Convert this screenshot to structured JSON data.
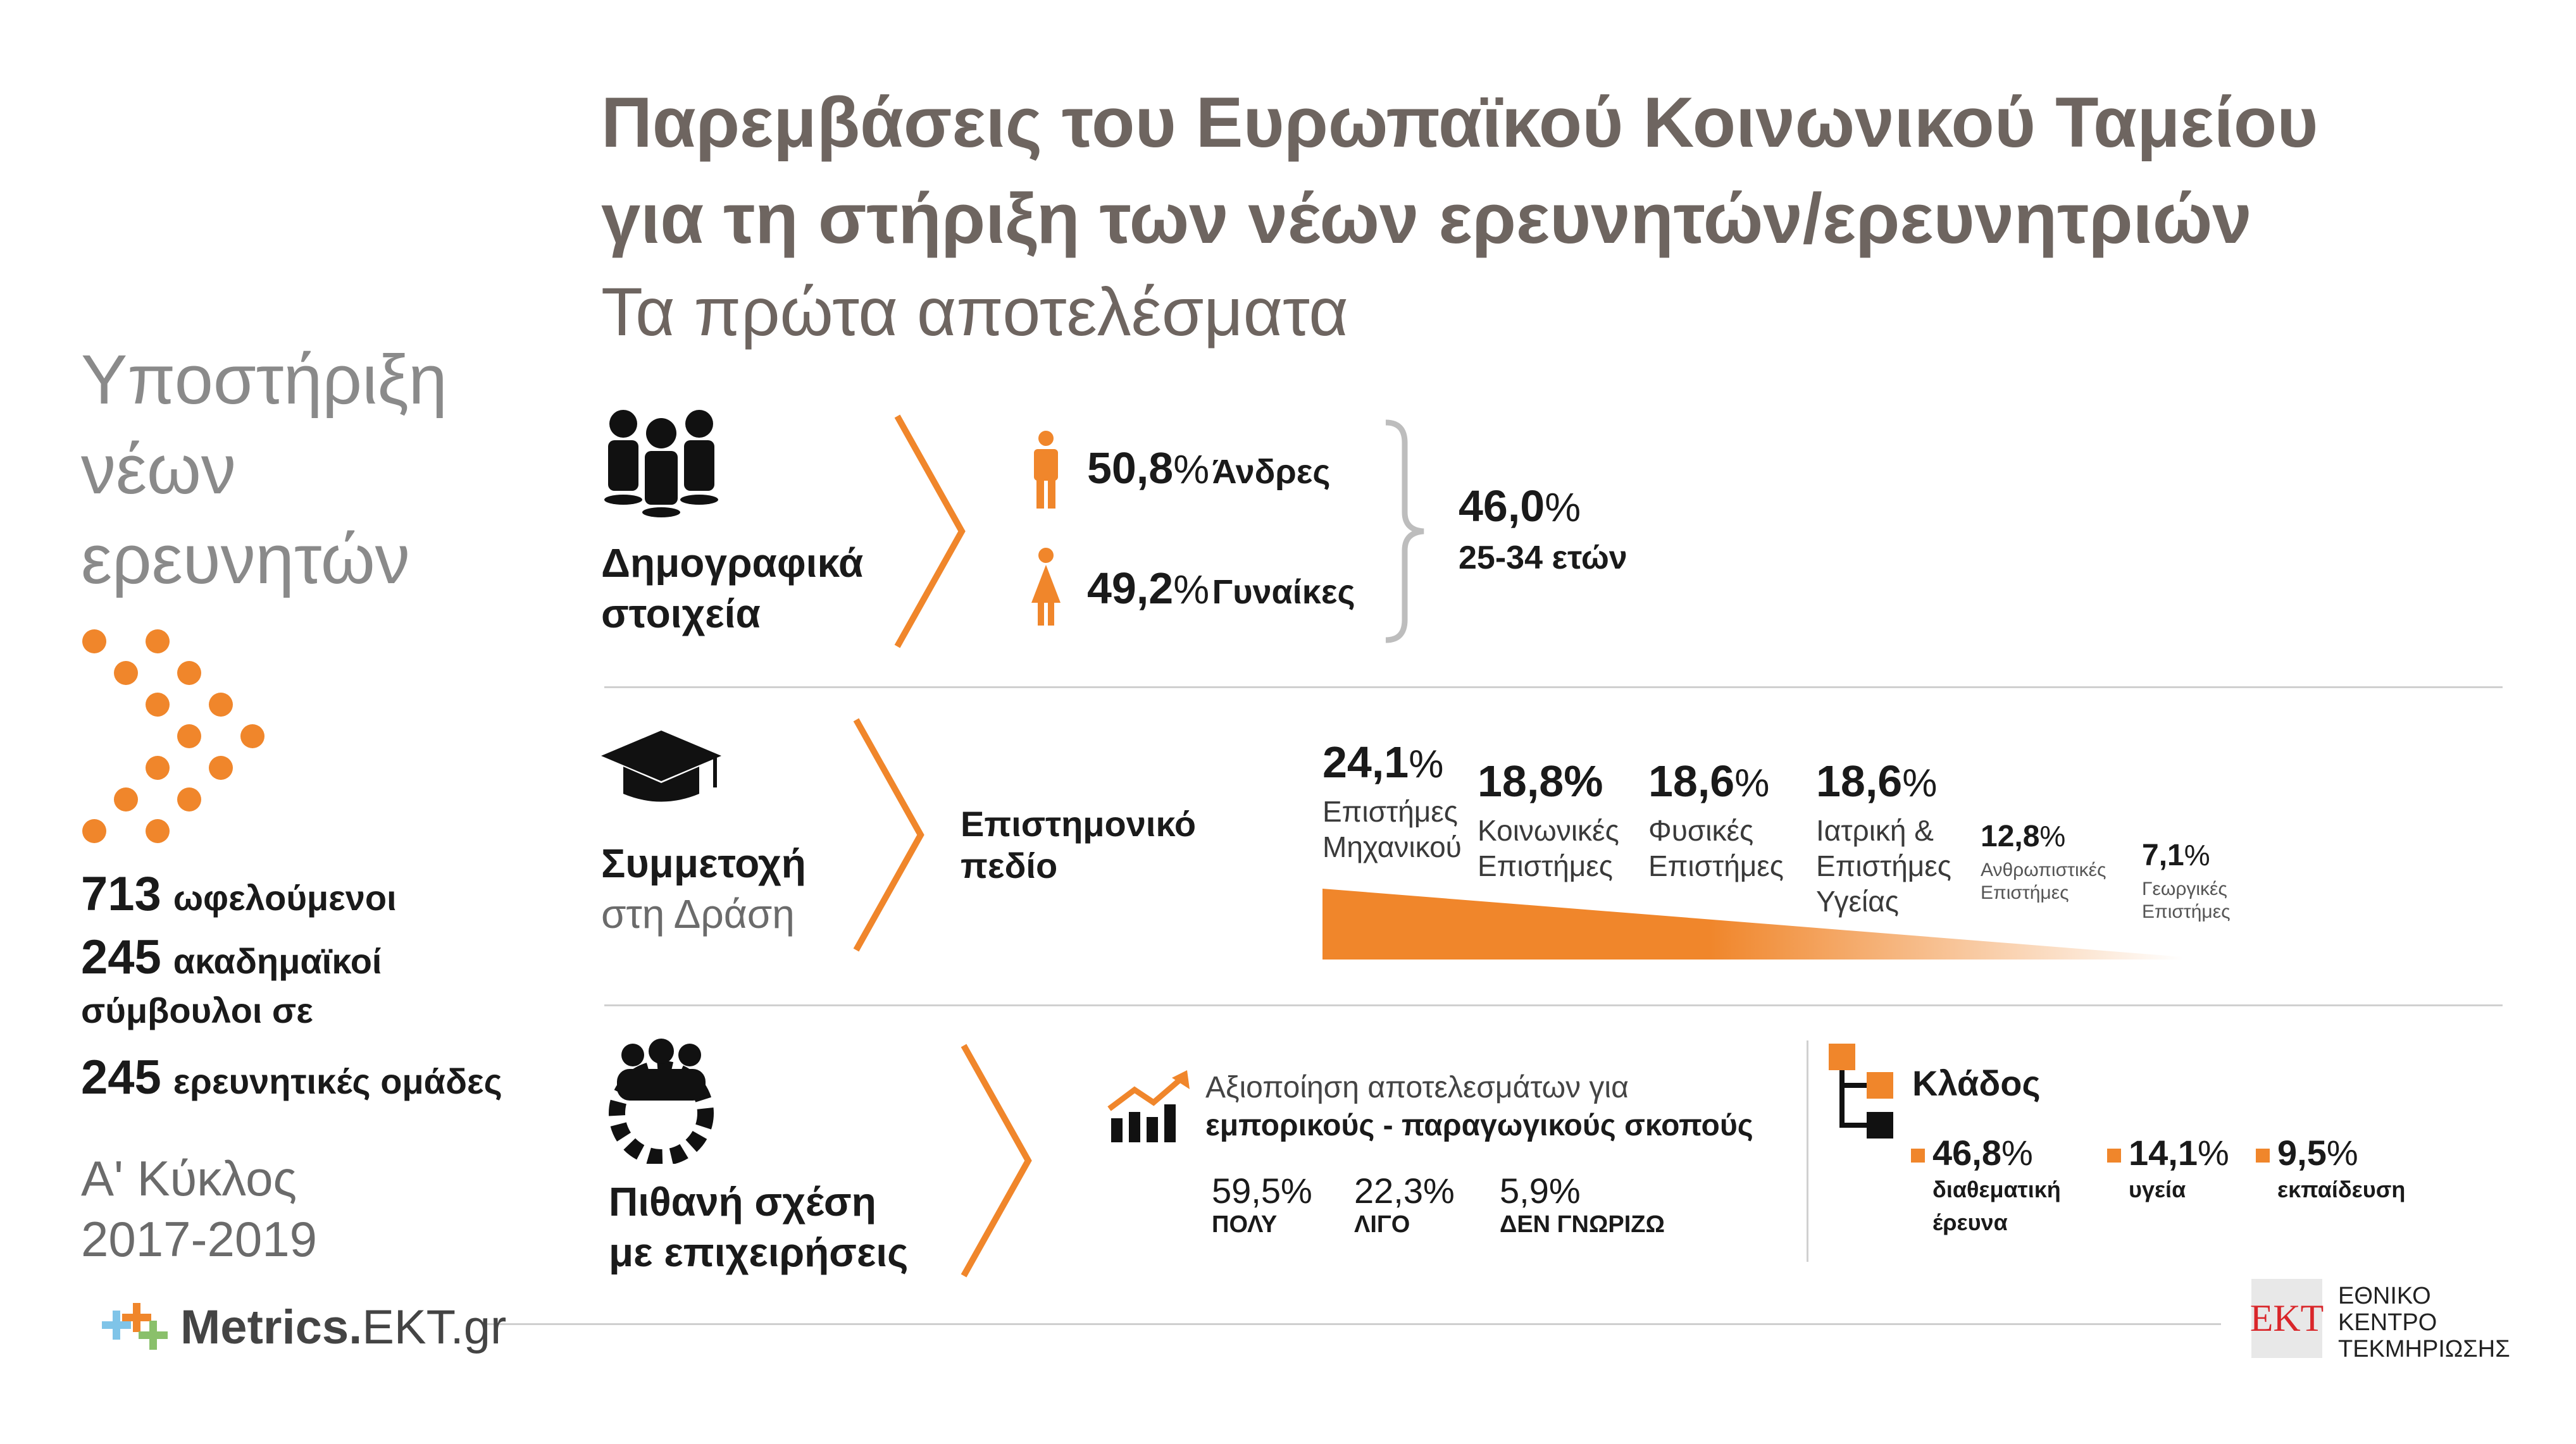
{
  "header": {
    "title_line1": "Παρεμβάσεις του Ευρωπαϊκού Κοινωνικού Ταμείου",
    "title_line2": "για τη στήριξη των νέων ερευνητών/ερευνητριών",
    "subtitle": "Τα πρώτα αποτελέσματα"
  },
  "sidebar": {
    "title_line1": "Υποστήριξη",
    "title_line2": "νέων",
    "title_line3": "ερευνητών",
    "stat1_num": "713",
    "stat1_lbl": "ωφελούμενοι",
    "stat2_num": "245",
    "stat2_lbl": "ακαδημαϊκοί",
    "stat2_lbl2": "σύμβουλοι σε",
    "stat3_num": "245",
    "stat3_lbl": "ερευνητικές ομάδες",
    "cycle_line1": "Α' Κύκλος",
    "cycle_line2": "2017-2019"
  },
  "demographics": {
    "label_line1": "Δημογραφικά",
    "label_line2": "στοιχεία",
    "men_pct": "50,8",
    "men_label": "Άνδρες",
    "women_pct": "49,2",
    "women_label": "Γυναίκες",
    "age_pct": "46,0",
    "age_label": "25-34 ετών",
    "pct_sign": "%"
  },
  "participation": {
    "label_line1": "Συμμετοχή",
    "label_line2": "στη Δράση",
    "field_title_line1": "Επιστημονικό",
    "field_title_line2": "πεδίο",
    "fields": [
      {
        "pct": "24,1",
        "l1": "Επιστήμες",
        "l2": "Μηχανικού",
        "l3": ""
      },
      {
        "pct": "18,8",
        "l1": "Κοινωνικές",
        "l2": "Επιστήμες",
        "l3": ""
      },
      {
        "pct": "18,6",
        "l1": "Φυσικές",
        "l2": "Επιστήμες",
        "l3": ""
      },
      {
        "pct": "18,6",
        "l1": "Ιατρική &",
        "l2": "Επιστήμες",
        "l3": "Υγείας"
      },
      {
        "pct": "12,8",
        "l1": "Ανθρωπιστικές",
        "l2": "Επιστήμες",
        "l3": ""
      },
      {
        "pct": "7,1",
        "l1": "Γεωργικές",
        "l2": "Επιστήμες",
        "l3": ""
      }
    ]
  },
  "business": {
    "label_line1": "Πιθανή σχέση",
    "label_line2": "με επιχειρήσεις",
    "exploit_line1": "Αξιοποίηση αποτελεσμάτων για",
    "exploit_line2": "εμπορικούς - παραγωγικούς σκοπούς",
    "answers": [
      {
        "pct": "59,5",
        "label": "ΠΟΛΥ"
      },
      {
        "pct": "22,3",
        "label": "ΛΙΓΟ"
      },
      {
        "pct": "5,9",
        "label": "ΔΕΝ ΓΝΩΡΙΖΩ"
      }
    ],
    "sector_title": "Κλάδος",
    "sectors": [
      {
        "pct": "46,8",
        "l1": "διαθεματική",
        "l2": "έρευνα"
      },
      {
        "pct": "14,1",
        "l1": "υγεία",
        "l2": ""
      },
      {
        "pct": "9,5",
        "l1": "εκπαίδευση",
        "l2": ""
      }
    ]
  },
  "footer": {
    "metrics_a": "Metrics.",
    "metrics_b": "EKT.gr",
    "ekt_logo": "EKT",
    "ekt_line1": "ΕΘΝΙΚΟ",
    "ekt_line2": "ΚΕΝΤΡΟ",
    "ekt_line3": "ΤΕΚΜΗΡΙΩΣΗΣ"
  },
  "colors": {
    "accent": "#f0862b",
    "title": "#6e6560",
    "muted": "#8a8a8a"
  },
  "icons": [
    "people-group-icon",
    "male-icon",
    "female-icon",
    "graduation-cap-icon",
    "team-gear-icon",
    "growth-chart-icon",
    "hierarchy-icon",
    "metrics-plus-icon"
  ]
}
